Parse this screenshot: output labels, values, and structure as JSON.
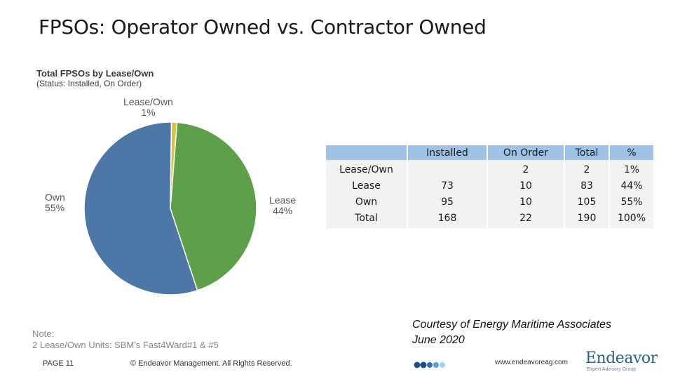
{
  "slide": {
    "title": "FPSOs: Operator Owned vs. Contractor Owned"
  },
  "chart_data": {
    "type": "pie",
    "title": "Total FPSOs by Lease/Own",
    "subtitle": "(Status: Installed, On Order)",
    "slices": [
      {
        "label": "Lease/Own",
        "percent_label": "1%",
        "value": 2,
        "color": "#e0c23a"
      },
      {
        "label": "Lease",
        "percent_label": "44%",
        "value": 83,
        "color": "#5ea04a"
      },
      {
        "label": "Own",
        "percent_label": "55%",
        "value": 105,
        "color": "#4d77a6"
      }
    ]
  },
  "table": {
    "columns": [
      "",
      "Installed",
      "On Order",
      "Total",
      "%"
    ],
    "rows": [
      [
        "Lease/Own",
        "",
        "2",
        "2",
        "1%"
      ],
      [
        "Lease",
        "73",
        "10",
        "83",
        "44%"
      ],
      [
        "Own",
        "95",
        "10",
        "105",
        "55%"
      ],
      [
        "Total",
        "168",
        "22",
        "190",
        "100%"
      ]
    ]
  },
  "courtesy": {
    "line1": "Courtesy of Energy Maritime Associates",
    "line2": "June 2020"
  },
  "note": {
    "line1": "Note:",
    "line2": "2 Lease/Own Units: SBM's Fast4Ward#1 & #5"
  },
  "footer": {
    "page": "PAGE 11",
    "copyright": "© Endeavor Management. All Rights Reserved.",
    "url": "www.endeavoreag.com",
    "dot_colors": [
      "#1f4e8c",
      "#1f4e8c",
      "#2f6fb8",
      "#5aa0dc",
      "#9fd0f0"
    ]
  },
  "logo": {
    "name": "Endeavor",
    "sub": "Expert Advisory Group"
  }
}
